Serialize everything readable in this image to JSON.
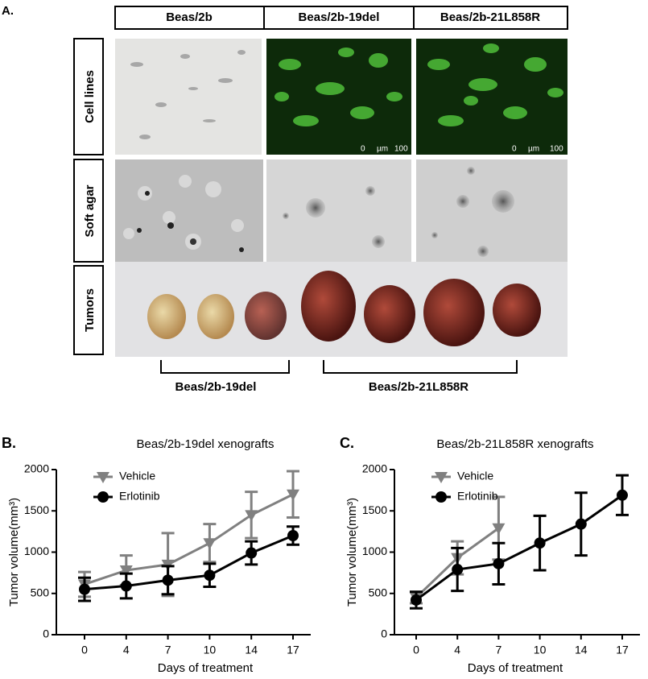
{
  "figure": {
    "label": "A.",
    "columns": [
      "Beas/2b",
      "Beas/2b-19del",
      "Beas/2b-21L858R"
    ],
    "rows": [
      "Cell lines",
      "Soft agar",
      "Tumors"
    ],
    "scale_bar": [
      "0",
      "µm",
      "100"
    ],
    "groups": [
      "Beas/2b-19del",
      "Beas/2b-21L858R"
    ]
  },
  "chart_data": [
    {
      "type": "line",
      "panel": "B.",
      "title": "Beas/2b-19del xenografts",
      "x_label": "Days of treatment",
      "y_label": "Tumor volume(mm³)",
      "categories": [
        "0",
        "4",
        "7",
        "10",
        "14",
        "17"
      ],
      "series": [
        {
          "name": "Vehicle",
          "color": "#808080",
          "marker": "triangle-down",
          "values": [
            610,
            780,
            850,
            1110,
            1450,
            1700
          ],
          "errors": [
            150,
            180,
            380,
            230,
            280,
            280
          ]
        },
        {
          "name": "Erlotinib",
          "color": "#000000",
          "marker": "circle",
          "values": [
            550,
            590,
            660,
            720,
            990,
            1200
          ],
          "errors": [
            140,
            150,
            170,
            140,
            140,
            110
          ]
        }
      ],
      "ylim": [
        0,
        2000
      ],
      "yticks": [
        0,
        500,
        1000,
        1500,
        2000
      ],
      "legend": "upper left"
    },
    {
      "type": "line",
      "panel": "C.",
      "title": "Beas/2b-21L858R xenografts",
      "x_label": "Days of treatment",
      "y_label": "Tumor volume(mm³)",
      "categories": [
        "0",
        "4",
        "7",
        "10",
        "14",
        "17"
      ],
      "series": [
        {
          "name": "Vehicle",
          "color": "#808080",
          "marker": "triangle-down",
          "values": [
            450,
            930,
            1290,
            null,
            null,
            null
          ],
          "errors": [
            70,
            200,
            380,
            null,
            null,
            null
          ]
        },
        {
          "name": "Erlotinib",
          "color": "#000000",
          "marker": "circle",
          "values": [
            420,
            790,
            860,
            1110,
            1340,
            1690
          ],
          "errors": [
            100,
            260,
            250,
            330,
            380,
            240
          ]
        }
      ],
      "ylim": [
        0,
        2000
      ],
      "yticks": [
        0,
        500,
        1000,
        1500,
        2000
      ],
      "legend": "upper left"
    }
  ]
}
